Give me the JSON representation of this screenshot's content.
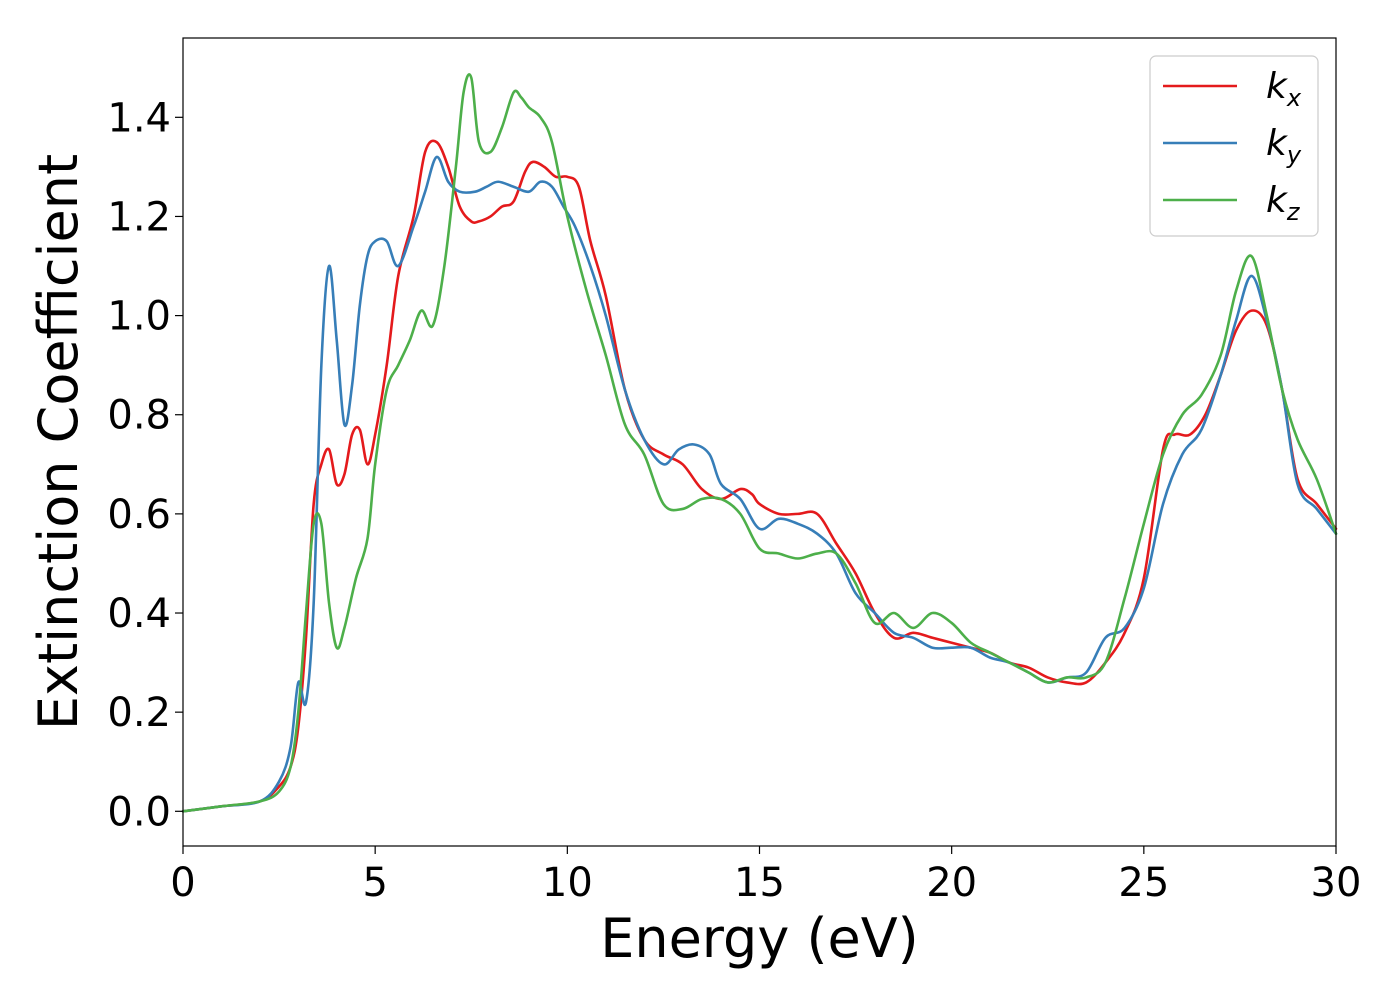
{
  "chart_data": {
    "type": "line",
    "title": "",
    "xlabel": "Energy (eV)",
    "ylabel": "Extinction Coefficient",
    "xlim": [
      0,
      30
    ],
    "ylim": [
      -0.07,
      1.56
    ],
    "xticks": [
      0,
      5,
      10,
      15,
      20,
      25,
      30
    ],
    "xtick_labels": [
      "0",
      "5",
      "10",
      "15",
      "20",
      "25",
      "30"
    ],
    "yticks": [
      0.0,
      0.2,
      0.4,
      0.6,
      0.8,
      1.0,
      1.2,
      1.4
    ],
    "ytick_labels": [
      "0.0",
      "0.2",
      "0.4",
      "0.6",
      "0.8",
      "1.0",
      "1.2",
      "1.4"
    ],
    "grid": false,
    "legend_position": "top-right",
    "series": [
      {
        "name": "k_x",
        "label_base": "k",
        "label_sub": "x",
        "color": "#e41a1c",
        "x": [
          0,
          1,
          2,
          2.5,
          2.8,
          3.0,
          3.2,
          3.4,
          3.6,
          3.8,
          4.0,
          4.2,
          4.4,
          4.6,
          4.8,
          5.0,
          5.3,
          5.6,
          6.0,
          6.3,
          6.6,
          6.9,
          7.2,
          7.5,
          7.7,
          8.0,
          8.3,
          8.6,
          8.9,
          9.1,
          9.4,
          9.7,
          10.0,
          10.3,
          10.6,
          11.0,
          11.5,
          12.0,
          12.5,
          13.0,
          13.5,
          14.0,
          14.5,
          14.8,
          15.0,
          15.5,
          16.0,
          16.5,
          17.0,
          17.5,
          18.0,
          18.5,
          19.0,
          19.5,
          20.0,
          20.5,
          21.0,
          21.5,
          22.0,
          22.5,
          23.0,
          23.5,
          24.0,
          24.5,
          25.0,
          25.5,
          25.8,
          26.2,
          26.6,
          27.0,
          27.4,
          27.8,
          28.2,
          28.6,
          29.0,
          29.5,
          30.0
        ],
        "y": [
          0.0,
          0.01,
          0.02,
          0.05,
          0.09,
          0.17,
          0.35,
          0.62,
          0.7,
          0.73,
          0.66,
          0.68,
          0.76,
          0.77,
          0.7,
          0.76,
          0.9,
          1.08,
          1.2,
          1.33,
          1.35,
          1.3,
          1.22,
          1.19,
          1.19,
          1.2,
          1.22,
          1.23,
          1.29,
          1.31,
          1.3,
          1.28,
          1.28,
          1.26,
          1.15,
          1.04,
          0.85,
          0.75,
          0.72,
          0.7,
          0.65,
          0.63,
          0.65,
          0.64,
          0.62,
          0.6,
          0.6,
          0.6,
          0.54,
          0.48,
          0.4,
          0.35,
          0.36,
          0.35,
          0.34,
          0.33,
          0.32,
          0.3,
          0.29,
          0.27,
          0.26,
          0.26,
          0.3,
          0.36,
          0.47,
          0.73,
          0.76,
          0.76,
          0.8,
          0.88,
          0.97,
          1.01,
          0.98,
          0.85,
          0.67,
          0.62,
          0.57
        ]
      },
      {
        "name": "k_y",
        "label_base": "k",
        "label_sub": "y",
        "color": "#377eb8",
        "x": [
          0,
          1,
          2,
          2.5,
          2.8,
          3.0,
          3.2,
          3.4,
          3.6,
          3.8,
          4.0,
          4.2,
          4.4,
          4.6,
          4.8,
          5.0,
          5.3,
          5.6,
          6.0,
          6.3,
          6.6,
          6.9,
          7.2,
          7.6,
          7.9,
          8.2,
          8.6,
          9.0,
          9.3,
          9.6,
          9.9,
          10.2,
          10.6,
          11.0,
          11.5,
          12.0,
          12.5,
          12.9,
          13.3,
          13.7,
          14.0,
          14.5,
          15.0,
          15.5,
          16.0,
          16.5,
          17.0,
          17.5,
          18.0,
          18.5,
          19.0,
          19.5,
          20.0,
          20.5,
          21.0,
          21.5,
          22.0,
          22.5,
          23.0,
          23.5,
          24.0,
          24.5,
          25.0,
          25.5,
          26.0,
          26.5,
          27.0,
          27.4,
          27.8,
          28.2,
          28.6,
          29.0,
          29.5,
          30.0
        ],
        "y": [
          0.0,
          0.01,
          0.02,
          0.06,
          0.13,
          0.26,
          0.22,
          0.42,
          0.9,
          1.1,
          0.95,
          0.78,
          0.86,
          1.02,
          1.12,
          1.15,
          1.15,
          1.1,
          1.18,
          1.25,
          1.32,
          1.27,
          1.25,
          1.25,
          1.26,
          1.27,
          1.26,
          1.25,
          1.27,
          1.26,
          1.22,
          1.18,
          1.1,
          1.0,
          0.85,
          0.75,
          0.7,
          0.73,
          0.74,
          0.72,
          0.66,
          0.63,
          0.57,
          0.59,
          0.58,
          0.56,
          0.52,
          0.44,
          0.4,
          0.36,
          0.35,
          0.33,
          0.33,
          0.33,
          0.31,
          0.3,
          0.28,
          0.26,
          0.27,
          0.28,
          0.35,
          0.37,
          0.45,
          0.62,
          0.72,
          0.77,
          0.88,
          0.99,
          1.08,
          0.99,
          0.85,
          0.66,
          0.61,
          0.56
        ]
      },
      {
        "name": "k_z",
        "label_base": "k",
        "label_sub": "z",
        "color": "#4daf4a",
        "x": [
          0,
          1,
          2,
          2.5,
          2.8,
          3.0,
          3.2,
          3.4,
          3.6,
          3.8,
          4.0,
          4.2,
          4.5,
          4.8,
          5.0,
          5.3,
          5.6,
          5.9,
          6.2,
          6.5,
          6.8,
          7.1,
          7.3,
          7.5,
          7.7,
          8.0,
          8.3,
          8.6,
          8.8,
          9.0,
          9.3,
          9.6,
          10.0,
          10.5,
          11.0,
          11.5,
          12.0,
          12.5,
          13.0,
          13.5,
          14.0,
          14.5,
          15.0,
          15.5,
          16.0,
          16.5,
          17.0,
          17.5,
          18.0,
          18.5,
          19.0,
          19.5,
          20.0,
          20.5,
          21.0,
          21.5,
          22.0,
          22.5,
          23.0,
          23.5,
          24.0,
          24.5,
          25.0,
          25.5,
          26.0,
          26.5,
          27.0,
          27.4,
          27.8,
          28.2,
          28.6,
          29.0,
          29.5,
          30.0
        ],
        "y": [
          0.0,
          0.01,
          0.02,
          0.04,
          0.09,
          0.2,
          0.4,
          0.58,
          0.58,
          0.42,
          0.33,
          0.37,
          0.47,
          0.55,
          0.7,
          0.85,
          0.9,
          0.95,
          1.01,
          0.98,
          1.1,
          1.3,
          1.45,
          1.48,
          1.35,
          1.33,
          1.38,
          1.45,
          1.44,
          1.42,
          1.4,
          1.35,
          1.2,
          1.05,
          0.92,
          0.78,
          0.72,
          0.62,
          0.61,
          0.63,
          0.63,
          0.6,
          0.53,
          0.52,
          0.51,
          0.52,
          0.52,
          0.46,
          0.38,
          0.4,
          0.37,
          0.4,
          0.38,
          0.34,
          0.32,
          0.3,
          0.28,
          0.26,
          0.27,
          0.27,
          0.3,
          0.43,
          0.58,
          0.72,
          0.8,
          0.84,
          0.92,
          1.05,
          1.12,
          1.0,
          0.85,
          0.75,
          0.67,
          0.56
        ]
      }
    ]
  }
}
